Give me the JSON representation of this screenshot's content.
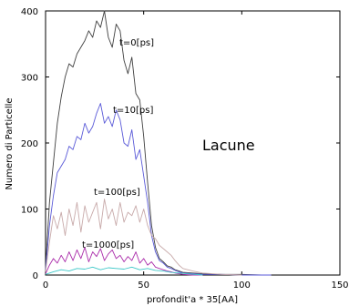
{
  "chart_data": {
    "type": "line",
    "title": "",
    "xlabel": "profondit'a * 35[AA]",
    "ylabel": "Numero di Particelle",
    "xlim": [
      0,
      150
    ],
    "ylim": [
      0,
      400
    ],
    "x_ticks": [
      "0",
      "50",
      "100",
      "150"
    ],
    "y_ticks": [
      "0",
      "100",
      "200",
      "300",
      "400"
    ],
    "grid": false,
    "annotations": {
      "t0": "t=0[ps]",
      "t10": "t=10[ps]",
      "t100": "t=100[ps]",
      "t1000": "t=1000[ps]",
      "lacune": "Lacune"
    },
    "series": [
      {
        "name": "t=0[ps]",
        "color": "#404040",
        "x": [
          0,
          2,
          4,
          6,
          8,
          10,
          12,
          14,
          16,
          18,
          20,
          22,
          24,
          26,
          28,
          30,
          32,
          34,
          36,
          38,
          40,
          42,
          44,
          46,
          48,
          50,
          52,
          54,
          56,
          58,
          60,
          62,
          64,
          66,
          68,
          70,
          75,
          80,
          90,
          100,
          110,
          115
        ],
        "y": [
          10,
          110,
          170,
          230,
          270,
          300,
          320,
          315,
          335,
          345,
          355,
          370,
          360,
          385,
          375,
          400,
          360,
          345,
          380,
          370,
          325,
          305,
          330,
          275,
          265,
          210,
          140,
          75,
          42,
          25,
          20,
          14,
          12,
          8,
          6,
          4,
          3,
          2,
          1,
          1,
          0,
          0
        ]
      },
      {
        "name": "t=10[ps]",
        "color": "#5a5ad8",
        "x": [
          0,
          2,
          4,
          6,
          8,
          10,
          12,
          14,
          16,
          18,
          20,
          22,
          24,
          26,
          28,
          30,
          32,
          34,
          36,
          38,
          40,
          42,
          44,
          46,
          48,
          50,
          52,
          54,
          56,
          58,
          60,
          62,
          64,
          66,
          68,
          70,
          75,
          80,
          90,
          100,
          110,
          115
        ],
        "y": [
          8,
          75,
          120,
          155,
          165,
          175,
          195,
          190,
          210,
          205,
          230,
          215,
          225,
          245,
          260,
          230,
          240,
          225,
          250,
          235,
          200,
          195,
          220,
          175,
          190,
          150,
          110,
          60,
          35,
          22,
          18,
          12,
          10,
          7,
          5,
          3,
          2,
          1,
          1,
          0,
          0,
          0
        ]
      },
      {
        "name": "t=100[ps]",
        "color": "#c8aaaa",
        "x": [
          0,
          2,
          4,
          6,
          8,
          10,
          12,
          14,
          16,
          18,
          20,
          22,
          24,
          26,
          28,
          30,
          32,
          34,
          36,
          38,
          40,
          42,
          44,
          46,
          48,
          50,
          52,
          54,
          56,
          58,
          60,
          62,
          64,
          66,
          68,
          70,
          75,
          80,
          90,
          100
        ],
        "y": [
          5,
          50,
          90,
          70,
          95,
          60,
          100,
          75,
          110,
          65,
          105,
          80,
          95,
          110,
          70,
          115,
          85,
          100,
          75,
          110,
          80,
          95,
          90,
          105,
          80,
          100,
          75,
          60,
          55,
          45,
          40,
          35,
          30,
          22,
          15,
          10,
          6,
          3,
          1,
          0
        ]
      },
      {
        "name": "t=1000[ps]",
        "color": "#aa2caa",
        "x": [
          0,
          2,
          4,
          6,
          8,
          10,
          12,
          14,
          16,
          18,
          20,
          22,
          24,
          26,
          28,
          30,
          32,
          34,
          36,
          38,
          40,
          42,
          44,
          46,
          48,
          50,
          52,
          54,
          56,
          58,
          60,
          62,
          64,
          66,
          68,
          70,
          75,
          80
        ],
        "y": [
          2,
          15,
          25,
          18,
          30,
          20,
          35,
          22,
          38,
          25,
          42,
          20,
          35,
          28,
          40,
          22,
          32,
          38,
          25,
          30,
          20,
          28,
          22,
          35,
          18,
          25,
          15,
          20,
          12,
          10,
          8,
          6,
          5,
          3,
          2,
          1,
          0,
          0
        ]
      },
      {
        "name": "",
        "color": "#3cc8c8",
        "x": [
          0,
          4,
          8,
          12,
          16,
          20,
          24,
          28,
          32,
          36,
          40,
          44,
          48,
          52,
          56,
          60,
          64,
          68,
          72,
          76,
          80
        ],
        "y": [
          1,
          5,
          8,
          6,
          10,
          9,
          12,
          8,
          11,
          10,
          9,
          12,
          8,
          10,
          7,
          6,
          4,
          3,
          2,
          1,
          0
        ]
      }
    ]
  }
}
